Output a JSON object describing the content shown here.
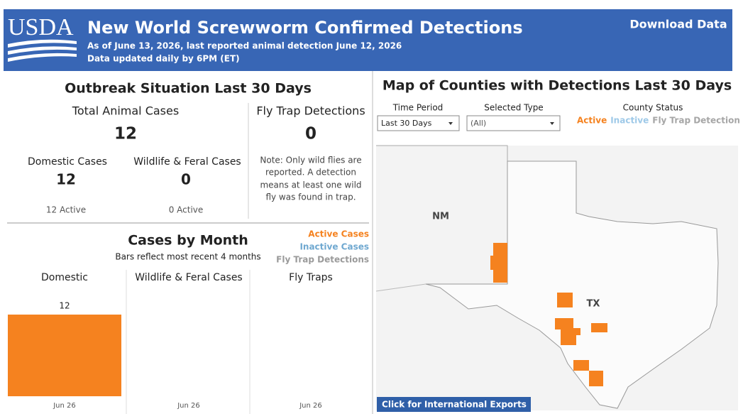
{
  "header": {
    "logo": "USDA",
    "title": "New World Screwworm Confirmed Detections",
    "subtitle_lines": [
      "As of June 13, 2026, last reported animal detection June 12, 2026",
      "Data updated daily by 6PM (ET)"
    ],
    "download": "Download Data"
  },
  "outbreak": {
    "title": "Outbreak Situation Last 30 Days",
    "total": {
      "label": "Total Animal Cases",
      "value": 12
    },
    "fly_trap": {
      "label": "Fly Trap Detections",
      "value": 0
    },
    "domestic": {
      "label": "Domestic Cases",
      "value": 12,
      "status": "12 Active"
    },
    "wildlife": {
      "label": "Wildlife & Feral Cases",
      "value": 0,
      "status": "0 Active"
    },
    "note_lines": [
      "Note: Only wild flies are",
      "reported. A detection",
      "means at least one wild",
      "fly was found in trap."
    ]
  },
  "cases_by_month": {
    "title": "Cases by Month",
    "subtitle": "Bars reflect most recent 4 months",
    "legend": [
      {
        "name": "Active Cases",
        "color": "#f5821f"
      },
      {
        "name": "Inactive Cases",
        "color": "#6fa8d0"
      },
      {
        "name": "Fly Trap Detections",
        "color": "#9a9a9a"
      }
    ],
    "color": "#f5821f",
    "panels": [
      {
        "title": "Domestic",
        "categories": [
          "Jun 26"
        ],
        "values": [
          12
        ]
      },
      {
        "title": "Wildlife & Feral Cases",
        "categories": [
          "Jun 26"
        ],
        "values": [
          null
        ]
      },
      {
        "title": "Fly Traps",
        "categories": [
          "Jun 26"
        ],
        "values": [
          null
        ]
      }
    ]
  },
  "map": {
    "title": "Map of Counties with Detections Last 30 Days",
    "filters": [
      {
        "label": "Time Period",
        "value": "Last 30 Days"
      },
      {
        "label": "Selected Type",
        "value": "(All)"
      }
    ],
    "status": {
      "label": "County Status",
      "items": [
        {
          "name": "Active",
          "color": "#f5821f"
        },
        {
          "name": "Inactive",
          "color": "#9ec9e8"
        },
        {
          "name": "Fly Trap Detection",
          "color": "#a6a6a6"
        }
      ]
    },
    "state_labels": [
      "NM",
      "TX"
    ],
    "button": "Click for International Exports"
  }
}
